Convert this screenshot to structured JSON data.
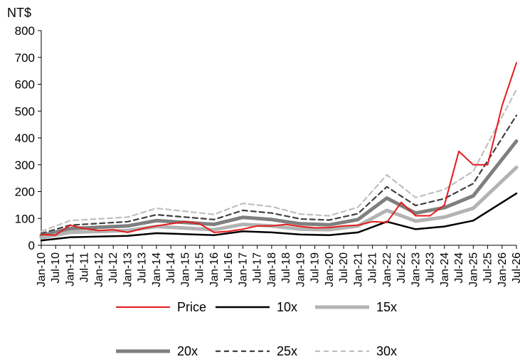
{
  "chart_data": {
    "type": "line",
    "unit_label": "NT$",
    "ylim": [
      0,
      800
    ],
    "yticks": [
      0,
      100,
      200,
      300,
      400,
      500,
      600,
      700,
      800
    ],
    "x_tick_labels": [
      "Jan-10",
      "Jul-10",
      "Jan-11",
      "Jul-11",
      "Jan-12",
      "Jul-12",
      "Jan-13",
      "Jul-13",
      "Jan-14",
      "Jul-14",
      "Jan-15",
      "Jul-15",
      "Jan-16",
      "Jul-16",
      "Jan-17",
      "Jul-17",
      "Jan-18",
      "Jul-18",
      "Jan-19",
      "Jul-19",
      "Jan-20",
      "Jul-20",
      "Jan-21",
      "Jul-21",
      "Jan-22",
      "Jul-22",
      "Jan-23",
      "Jul-23",
      "Jan-24",
      "Jul-24",
      "Jan-25",
      "Jul-25",
      "Jan-26",
      "Jul-26"
    ],
    "grid": false,
    "legend_position": "bottom",
    "series": [
      {
        "name": "Price",
        "color": "#e41a1c",
        "style": "solid-thin",
        "x": [
          "Jan-10",
          "Jul-10",
          "Jan-11",
          "Jul-11",
          "Jan-12",
          "Jul-12",
          "Jan-13",
          "Jul-13",
          "Jan-14",
          "Jul-14",
          "Jan-15",
          "Jul-15",
          "Jan-16",
          "Jul-16",
          "Jan-17",
          "Jul-17",
          "Jan-18",
          "Jul-18",
          "Jan-19",
          "Jul-19",
          "Jan-20",
          "Jul-20",
          "Jan-21",
          "Jul-21",
          "Jan-22",
          "Jul-22",
          "Jan-23",
          "Jul-23",
          "Jan-24",
          "Jul-24",
          "Jan-25",
          "Jul-25",
          "Jan-26",
          "Jul-26"
        ],
        "values": [
          40,
          38,
          75,
          62,
          55,
          58,
          48,
          62,
          72,
          80,
          88,
          80,
          48,
          52,
          60,
          72,
          72,
          78,
          70,
          65,
          66,
          72,
          75,
          88,
          85,
          160,
          110,
          110,
          150,
          350,
          300,
          300,
          520,
          680
        ]
      },
      {
        "name": "10x",
        "color": "#000000",
        "style": "solid",
        "x": [
          "Jan-10",
          "Jan-11",
          "Jan-13",
          "Jan-14",
          "Jan-16",
          "Jan-17",
          "Jan-18",
          "Jan-19",
          "Jan-20",
          "Jan-21",
          "Jan-22",
          "Jan-23",
          "Jan-24",
          "Jan-25",
          "Jul-26"
        ],
        "values": [
          18,
          30,
          35,
          45,
          38,
          52,
          48,
          40,
          38,
          48,
          88,
          60,
          70,
          92,
          193
        ]
      },
      {
        "name": "15x",
        "color": "#b3b3b3",
        "style": "solid-thick",
        "x": [
          "Jan-10",
          "Jan-11",
          "Jan-13",
          "Jan-14",
          "Jan-16",
          "Jan-17",
          "Jan-18",
          "Jan-19",
          "Jan-20",
          "Jan-21",
          "Jan-22",
          "Jan-23",
          "Jan-24",
          "Jan-25",
          "Jul-26"
        ],
        "values": [
          28,
          48,
          55,
          70,
          58,
          78,
          72,
          60,
          58,
          72,
          130,
          90,
          105,
          138,
          290
        ]
      },
      {
        "name": "20x",
        "color": "#7f7f7f",
        "style": "solid-thick",
        "x": [
          "Jan-10",
          "Jan-11",
          "Jan-13",
          "Jan-14",
          "Jan-16",
          "Jan-17",
          "Jan-18",
          "Jan-19",
          "Jan-20",
          "Jan-21",
          "Jan-22",
          "Jan-23",
          "Jan-24",
          "Jan-25",
          "Jul-26"
        ],
        "values": [
          36,
          62,
          72,
          92,
          78,
          104,
          96,
          80,
          76,
          96,
          176,
          120,
          140,
          184,
          388
        ]
      },
      {
        "name": "25x",
        "color": "#404040",
        "style": "dashed",
        "x": [
          "Jan-10",
          "Jan-11",
          "Jan-13",
          "Jan-14",
          "Jan-16",
          "Jan-17",
          "Jan-18",
          "Jan-19",
          "Jan-20",
          "Jan-21",
          "Jan-22",
          "Jan-23",
          "Jan-24",
          "Jan-25",
          "Jul-26"
        ],
        "values": [
          44,
          75,
          88,
          114,
          96,
          130,
          120,
          98,
          94,
          118,
          218,
          148,
          174,
          230,
          484
        ]
      },
      {
        "name": "30x",
        "color": "#bfbfbf",
        "style": "dashed",
        "x": [
          "Jan-10",
          "Jan-11",
          "Jan-13",
          "Jan-14",
          "Jan-16",
          "Jan-17",
          "Jan-18",
          "Jan-19",
          "Jan-20",
          "Jan-21",
          "Jan-22",
          "Jan-23",
          "Jan-24",
          "Jan-25",
          "Jul-26"
        ],
        "values": [
          52,
          92,
          105,
          138,
          115,
          156,
          144,
          116,
          110,
          142,
          262,
          178,
          208,
          276,
          580
        ]
      }
    ]
  }
}
